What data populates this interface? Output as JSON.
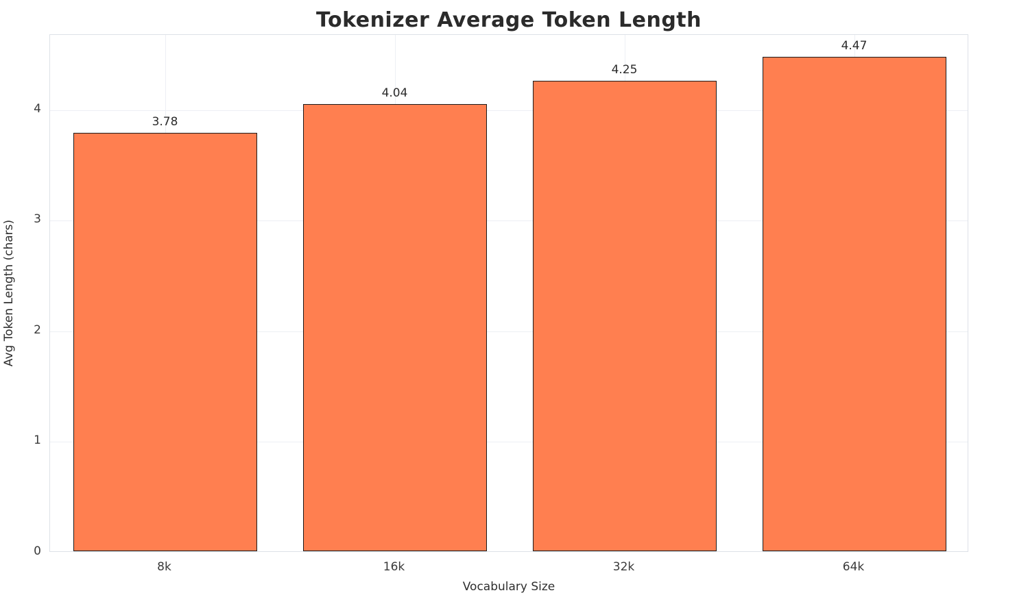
{
  "chart_data": {
    "type": "bar",
    "title": "Tokenizer Average Token Length",
    "xlabel": "Vocabulary Size",
    "ylabel": "Avg Token Length (chars)",
    "categories": [
      "8k",
      "16k",
      "32k",
      "64k"
    ],
    "values": [
      3.78,
      4.04,
      4.25,
      4.47
    ],
    "value_labels": [
      "3.78",
      "4.04",
      "4.25",
      "4.47"
    ],
    "yticks": [
      0,
      1,
      2,
      3,
      4
    ],
    "ylim": [
      0,
      4.68
    ],
    "bar_color": "#FF7F50",
    "bar_edge_color": "#1a1a1a",
    "grid": true,
    "grid_color": "#edeff4",
    "legend": "none"
  }
}
